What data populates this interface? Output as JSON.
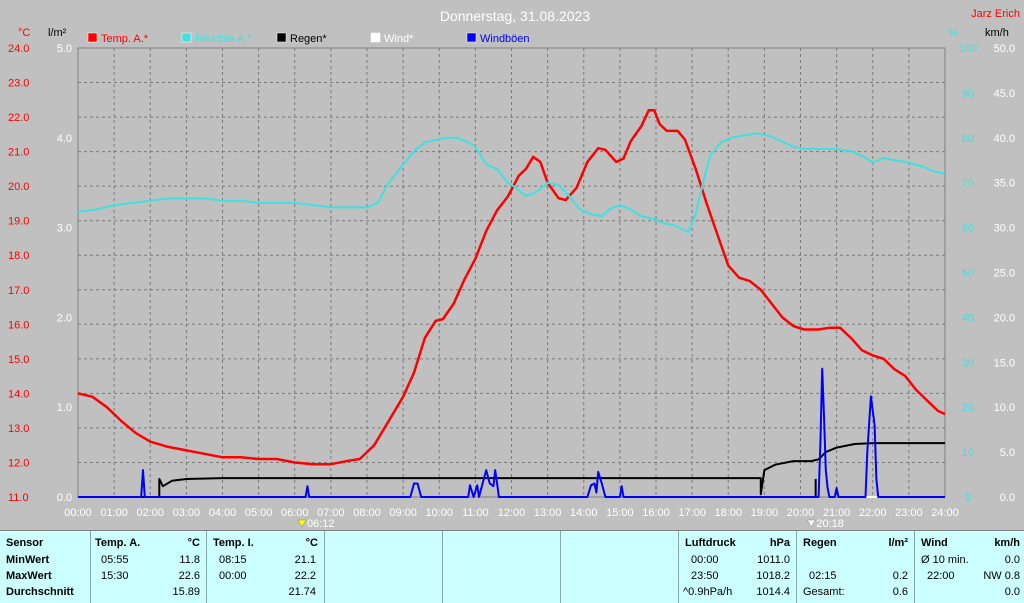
{
  "header": {
    "title": "Donnerstag, 31.08.2023",
    "author": "Jarz Erich"
  },
  "chart_data": {
    "type": "line",
    "title": "Donnerstag, 31.08.2023",
    "x_ticks": [
      "00:00",
      "01:00",
      "02:00",
      "03:00",
      "04:00",
      "05:00",
      "06:00",
      "07:00",
      "08:00",
      "09:00",
      "10:00",
      "11:00",
      "12:00",
      "13:00",
      "14:00",
      "15:00",
      "16:00",
      "17:00",
      "18:00",
      "19:00",
      "20:00",
      "21:00",
      "22:00",
      "23:00",
      "24:00"
    ],
    "axes": {
      "temp": {
        "label": "°C",
        "range": [
          11.0,
          24.0
        ],
        "ticks": [
          "11.0",
          "12.0",
          "13.0",
          "14.0",
          "15.0",
          "16.0",
          "17.0",
          "18.0",
          "19.0",
          "20.0",
          "21.0",
          "22.0",
          "23.0",
          "24.0"
        ],
        "color": "#ff0000"
      },
      "rain": {
        "label": "l/m²",
        "range": [
          0.0,
          5.0
        ],
        "ticks": [
          "0.0",
          "1.0",
          "2.0",
          "3.0",
          "4.0",
          "5.0"
        ],
        "color": "#000000"
      },
      "humidity": {
        "label": "%",
        "range": [
          0,
          100
        ],
        "ticks": [
          "0",
          "10",
          "20",
          "30",
          "40",
          "50",
          "60",
          "70",
          "80",
          "90",
          "100"
        ],
        "color": "#40e0e0"
      },
      "wind": {
        "label": "km/h",
        "range": [
          0.0,
          50.0
        ],
        "ticks": [
          "0.0",
          "5.0",
          "10.0",
          "15.0",
          "20.0",
          "25.0",
          "30.0",
          "35.0",
          "40.0",
          "45.0",
          "50.0"
        ],
        "color": "#000000"
      }
    },
    "sunrise": "06:12",
    "sunset": "20:18",
    "grid": true,
    "legend_position": "top",
    "series": [
      {
        "name": "Temp. A.*",
        "color": "#ff0000",
        "axis": "temp",
        "points": [
          [
            0,
            14.0
          ],
          [
            0.4,
            13.9
          ],
          [
            0.8,
            13.6
          ],
          [
            1.2,
            13.2
          ],
          [
            1.6,
            12.85
          ],
          [
            2.0,
            12.6
          ],
          [
            2.5,
            12.45
          ],
          [
            3.0,
            12.35
          ],
          [
            3.5,
            12.25
          ],
          [
            4.0,
            12.15
          ],
          [
            4.5,
            12.15
          ],
          [
            5.0,
            12.1
          ],
          [
            5.5,
            12.1
          ],
          [
            6.0,
            12.0
          ],
          [
            6.5,
            11.95
          ],
          [
            7.0,
            11.95
          ],
          [
            7.5,
            12.05
          ],
          [
            7.8,
            12.1
          ],
          [
            8.2,
            12.5
          ],
          [
            8.6,
            13.2
          ],
          [
            9.0,
            13.9
          ],
          [
            9.3,
            14.6
          ],
          [
            9.6,
            15.6
          ],
          [
            9.9,
            16.1
          ],
          [
            10.1,
            16.15
          ],
          [
            10.4,
            16.6
          ],
          [
            10.7,
            17.3
          ],
          [
            11.0,
            17.9
          ],
          [
            11.3,
            18.7
          ],
          [
            11.6,
            19.3
          ],
          [
            11.9,
            19.7
          ],
          [
            12.2,
            20.3
          ],
          [
            12.4,
            20.5
          ],
          [
            12.6,
            20.85
          ],
          [
            12.8,
            20.7
          ],
          [
            13.0,
            20.1
          ],
          [
            13.3,
            19.65
          ],
          [
            13.5,
            19.6
          ],
          [
            13.8,
            19.95
          ],
          [
            14.1,
            20.7
          ],
          [
            14.4,
            21.1
          ],
          [
            14.6,
            21.05
          ],
          [
            14.9,
            20.7
          ],
          [
            15.1,
            20.8
          ],
          [
            15.3,
            21.3
          ],
          [
            15.6,
            21.75
          ],
          [
            15.8,
            22.2
          ],
          [
            15.95,
            22.2
          ],
          [
            16.1,
            21.8
          ],
          [
            16.3,
            21.6
          ],
          [
            16.6,
            21.6
          ],
          [
            16.8,
            21.35
          ],
          [
            17.1,
            20.5
          ],
          [
            17.4,
            19.5
          ],
          [
            17.7,
            18.6
          ],
          [
            18.0,
            17.7
          ],
          [
            18.3,
            17.35
          ],
          [
            18.6,
            17.25
          ],
          [
            18.9,
            17.0
          ],
          [
            19.2,
            16.6
          ],
          [
            19.5,
            16.2
          ],
          [
            19.8,
            15.95
          ],
          [
            20.1,
            15.85
          ],
          [
            20.5,
            15.85
          ],
          [
            20.8,
            15.9
          ],
          [
            21.1,
            15.9
          ],
          [
            21.4,
            15.6
          ],
          [
            21.7,
            15.25
          ],
          [
            22.0,
            15.1
          ],
          [
            22.3,
            15.0
          ],
          [
            22.6,
            14.7
          ],
          [
            22.9,
            14.5
          ],
          [
            23.2,
            14.1
          ],
          [
            23.5,
            13.8
          ],
          [
            23.8,
            13.5
          ],
          [
            24,
            13.4
          ]
        ]
      },
      {
        "name": "Feuchte A.*",
        "color": "#40e0e0",
        "axis": "humidity",
        "points": [
          [
            0,
            63.5
          ],
          [
            0.5,
            64
          ],
          [
            1.0,
            65
          ],
          [
            1.5,
            65.5
          ],
          [
            2.0,
            66
          ],
          [
            2.5,
            66.5
          ],
          [
            3.0,
            66.5
          ],
          [
            3.5,
            66.5
          ],
          [
            4.0,
            66
          ],
          [
            4.5,
            66
          ],
          [
            5.0,
            65.5
          ],
          [
            5.5,
            65.5
          ],
          [
            6.0,
            65.5
          ],
          [
            6.5,
            65
          ],
          [
            7.0,
            64.5
          ],
          [
            7.5,
            64.5
          ],
          [
            8.0,
            64.5
          ],
          [
            8.3,
            65.5
          ],
          [
            8.6,
            70
          ],
          [
            9.0,
            74
          ],
          [
            9.3,
            77
          ],
          [
            9.6,
            79
          ],
          [
            9.9,
            79.5
          ],
          [
            10.2,
            80
          ],
          [
            10.5,
            80
          ],
          [
            10.8,
            79
          ],
          [
            11.0,
            78
          ],
          [
            11.3,
            74
          ],
          [
            11.6,
            73
          ],
          [
            11.9,
            70
          ],
          [
            12.1,
            69
          ],
          [
            12.4,
            67
          ],
          [
            12.7,
            68
          ],
          [
            13.0,
            70
          ],
          [
            13.3,
            69.5
          ],
          [
            13.6,
            67
          ],
          [
            13.9,
            64
          ],
          [
            14.2,
            63
          ],
          [
            14.5,
            62.5
          ],
          [
            14.7,
            64
          ],
          [
            15.0,
            65
          ],
          [
            15.3,
            64
          ],
          [
            15.6,
            62.5
          ],
          [
            15.9,
            62
          ],
          [
            16.2,
            61
          ],
          [
            16.5,
            60.5
          ],
          [
            16.9,
            59
          ],
          [
            17.1,
            63
          ],
          [
            17.3,
            70
          ],
          [
            17.5,
            76
          ],
          [
            17.8,
            79
          ],
          [
            18.1,
            80
          ],
          [
            18.4,
            80.5
          ],
          [
            18.8,
            81
          ],
          [
            19.1,
            80.5
          ],
          [
            19.4,
            79.5
          ],
          [
            19.8,
            78
          ],
          [
            20.1,
            77.5
          ],
          [
            20.5,
            77.5
          ],
          [
            21.0,
            77.5
          ],
          [
            21.4,
            77
          ],
          [
            21.7,
            76
          ],
          [
            22.0,
            74.5
          ],
          [
            22.3,
            75.5
          ],
          [
            22.6,
            75
          ],
          [
            23.0,
            74.5
          ],
          [
            23.4,
            73.5
          ],
          [
            23.7,
            72.5
          ],
          [
            24,
            72
          ]
        ]
      },
      {
        "name": "Regen*",
        "color": "#000000",
        "axis": "rain",
        "points": [
          [
            0,
            0
          ],
          [
            2.25,
            0
          ],
          [
            2.25,
            0.2
          ],
          [
            2.35,
            0.12
          ],
          [
            2.6,
            0.18
          ],
          [
            3.0,
            0.2
          ],
          [
            4.0,
            0.21
          ],
          [
            8.0,
            0.21
          ],
          [
            12.0,
            0.21
          ],
          [
            16.0,
            0.21
          ],
          [
            18.9,
            0.21
          ],
          [
            18.9,
            0.03
          ],
          [
            19.0,
            0.3
          ],
          [
            19.3,
            0.36
          ],
          [
            19.8,
            0.4
          ],
          [
            20.3,
            0.4
          ],
          [
            20.5,
            0.42
          ],
          [
            20.7,
            0.5
          ],
          [
            21.0,
            0.55
          ],
          [
            21.5,
            0.59
          ],
          [
            22.0,
            0.6
          ],
          [
            24,
            0.6
          ]
        ],
        "spikes": [
          [
            20.42,
            0.2
          ]
        ]
      },
      {
        "name": "Wind*",
        "color": "#ffffff",
        "axis": "wind",
        "points": [
          [
            21.8,
            0
          ],
          [
            22.6,
            0
          ]
        ]
      },
      {
        "name": "Windböen",
        "color": "#0000ff",
        "axis": "wind",
        "points": [
          [
            0,
            0
          ],
          [
            1.75,
            0
          ],
          [
            1.8,
            3
          ],
          [
            1.85,
            0
          ],
          [
            6.3,
            0
          ],
          [
            6.35,
            1.2
          ],
          [
            6.4,
            0
          ],
          [
            9.2,
            0
          ],
          [
            9.3,
            1.5
          ],
          [
            9.4,
            1.5
          ],
          [
            9.5,
            0
          ],
          [
            10.8,
            0
          ],
          [
            10.85,
            1.3
          ],
          [
            10.95,
            0
          ],
          [
            11.05,
            1.3
          ],
          [
            11.1,
            0
          ],
          [
            11.2,
            1.5
          ],
          [
            11.3,
            3.0
          ],
          [
            11.4,
            1.5
          ],
          [
            11.5,
            1.2
          ],
          [
            11.55,
            3
          ],
          [
            11.6,
            1.5
          ],
          [
            11.65,
            0
          ],
          [
            14.1,
            0
          ],
          [
            14.2,
            1.3
          ],
          [
            14.3,
            1.5
          ],
          [
            14.35,
            0.5
          ],
          [
            14.4,
            2.8
          ],
          [
            14.5,
            1.5
          ],
          [
            14.6,
            0
          ],
          [
            15.0,
            0
          ],
          [
            15.05,
            1.2
          ],
          [
            15.1,
            0
          ],
          [
            20.5,
            0
          ],
          [
            20.55,
            6
          ],
          [
            20.6,
            14.3
          ],
          [
            20.65,
            9
          ],
          [
            20.7,
            3
          ],
          [
            20.75,
            1
          ],
          [
            20.8,
            0
          ],
          [
            20.95,
            0
          ],
          [
            21.0,
            1.0
          ],
          [
            21.05,
            0
          ],
          [
            21.8,
            0
          ],
          [
            21.85,
            5
          ],
          [
            21.95,
            11.2
          ],
          [
            22.05,
            8
          ],
          [
            22.1,
            2
          ],
          [
            22.15,
            0
          ],
          [
            24,
            0
          ]
        ]
      }
    ]
  },
  "table": {
    "sensor": {
      "header": "Sensor",
      "rows": [
        "MinWert",
        "MaxWert",
        "Durchschnitt"
      ]
    },
    "temp_a": {
      "header": "Temp. A.",
      "unit": "°C",
      "min_time": "05:55",
      "min_val": "11.8",
      "max_time": "15:30",
      "max_val": "22.6",
      "avg": "15.89"
    },
    "temp_i": {
      "header": "Temp. I.",
      "unit": "°C",
      "min_time": "08:15",
      "min_val": "21.1",
      "max_time": "00:00",
      "max_val": "22.2",
      "avg": "21.74"
    },
    "pressure": {
      "header": "Luftdruck",
      "unit": "hPa",
      "min_time": "00:00",
      "min_val": "1011.0",
      "max_time": "23:50",
      "max_val": "1018.2",
      "trend_label": "^0.9hPa/h",
      "trend_val": "1014.4"
    },
    "rain": {
      "header": "Regen",
      "unit": "l/m²",
      "max_time": "02:15",
      "max_val": "0.2",
      "total_label": "Gesamt:",
      "total_val": "0.6"
    },
    "wind": {
      "header": "Wind",
      "unit": "km/h",
      "avg_label": "Ø 10 min.",
      "avg_val": "0.0",
      "max_time": "22:00",
      "max_val": "NW 0.8",
      "last_val": "0.0"
    }
  }
}
